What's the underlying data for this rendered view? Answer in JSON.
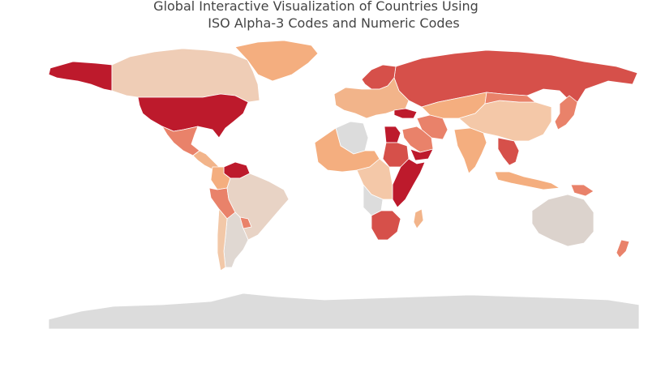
{
  "title": {
    "line1": "Global Interactive Visualization of Countries Using",
    "line2": "ISO Alpha-3 Codes and Numeric Codes"
  },
  "colors": {
    "background": "#ffffff",
    "no_data": "#dcdcdc",
    "border": "#ffffff",
    "scale": [
      "#f2d2c0",
      "#f4ae7f",
      "#e9826a",
      "#d6504a",
      "#bd1a2c"
    ]
  },
  "map_data": {
    "type": "choropleth",
    "projection": "equirectangular",
    "regions": [
      {
        "name": "Alaska",
        "color": "#bd1a2c"
      },
      {
        "name": "Canada",
        "color": "#efcdb6"
      },
      {
        "name": "Greenland",
        "color": "#f4ae7f"
      },
      {
        "name": "United States",
        "color": "#bd1a2c"
      },
      {
        "name": "Mexico",
        "color": "#e9826a"
      },
      {
        "name": "Central America",
        "color": "#f2b48a"
      },
      {
        "name": "Venezuela",
        "color": "#bd1a2c"
      },
      {
        "name": "Colombia",
        "color": "#f4ae7f"
      },
      {
        "name": "Peru",
        "color": "#e9826a"
      },
      {
        "name": "Brazil",
        "color": "#e8d3c5"
      },
      {
        "name": "Argentina",
        "color": "#e0d8d2"
      },
      {
        "name": "Chile",
        "color": "#f2c8a8"
      },
      {
        "name": "Paraguay",
        "color": "#e9826a"
      },
      {
        "name": "Antarctica",
        "color": "#dcdcdc"
      },
      {
        "name": "Russia",
        "color": "#d6504a"
      },
      {
        "name": "Scandinavia",
        "color": "#d6504a"
      },
      {
        "name": "Europe",
        "color": "#f2b48a"
      },
      {
        "name": "Turkey",
        "color": "#bd1a2c"
      },
      {
        "name": "Kazakhstan",
        "color": "#f4ae7f"
      },
      {
        "name": "China",
        "color": "#f4c8a8"
      },
      {
        "name": "Mongolia",
        "color": "#e9826a"
      },
      {
        "name": "India",
        "color": "#f4ae7f"
      },
      {
        "name": "Iran",
        "color": "#e9826a"
      },
      {
        "name": "Saudi Arabia",
        "color": "#e9826a"
      },
      {
        "name": "Yemen",
        "color": "#bd1a2c"
      },
      {
        "name": "Southeast Asia",
        "color": "#d6504a"
      },
      {
        "name": "Indonesia",
        "color": "#f4ae7f"
      },
      {
        "name": "Japan",
        "color": "#e9826a"
      },
      {
        "name": "Australia",
        "color": "#dcd3cd"
      },
      {
        "name": "New Zealand",
        "color": "#e9826a"
      },
      {
        "name": "Papua New Guinea",
        "color": "#e9826a"
      },
      {
        "name": "Algeria",
        "color": "#dcdcdc"
      },
      {
        "name": "West Africa",
        "color": "#f4ae7f"
      },
      {
        "name": "Egypt",
        "color": "#bd1a2c"
      },
      {
        "name": "Sudan",
        "color": "#d6504a"
      },
      {
        "name": "East Africa",
        "color": "#bd1a2c"
      },
      {
        "name": "Central Africa",
        "color": "#f4c8a8"
      },
      {
        "name": "Angola",
        "color": "#dcdcdc"
      },
      {
        "name": "Southern Africa",
        "color": "#d6504a"
      },
      {
        "name": "Madagascar",
        "color": "#f2b48a"
      }
    ]
  }
}
